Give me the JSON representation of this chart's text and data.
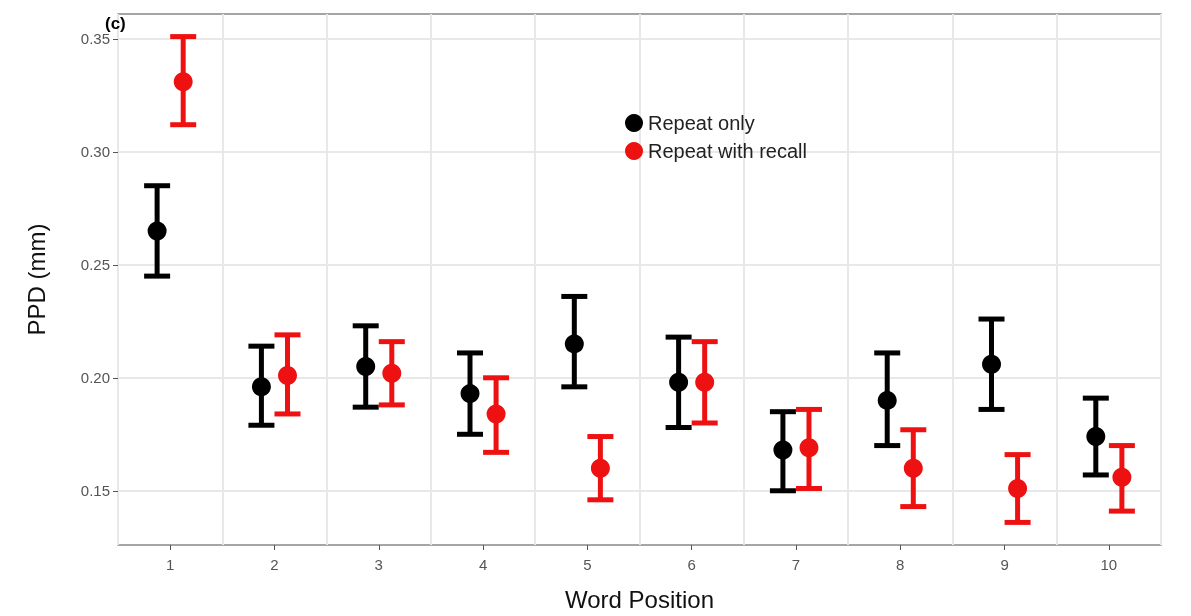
{
  "chart_data": {
    "type": "scatter",
    "xlabel": "Word Position",
    "ylabel": "PPD (mm)",
    "annotations": [
      "(c)"
    ],
    "categories": [
      "1",
      "2",
      "3",
      "4",
      "5",
      "6",
      "7",
      "8",
      "9",
      "10"
    ],
    "series": [
      {
        "name": "Repeat only",
        "color": "#000000",
        "values": [
          0.265,
          0.196,
          0.205,
          0.193,
          0.215,
          0.198,
          0.168,
          0.19,
          0.206,
          0.174
        ],
        "errors": [
          [
            0.245,
            0.285
          ],
          [
            0.179,
            0.214
          ],
          [
            0.187,
            0.223
          ],
          [
            0.175,
            0.211
          ],
          [
            0.196,
            0.236
          ],
          [
            0.178,
            0.218
          ],
          [
            0.15,
            0.185
          ],
          [
            0.17,
            0.211
          ],
          [
            0.186,
            0.226
          ],
          [
            0.157,
            0.191
          ]
        ]
      },
      {
        "name": "Repeat with recall",
        "color": "#ee1111",
        "values": [
          0.331,
          0.201,
          0.202,
          0.184,
          0.16,
          0.198,
          0.169,
          0.16,
          0.151,
          0.156
        ],
        "errors": [
          [
            0.312,
            0.351
          ],
          [
            0.184,
            0.219
          ],
          [
            0.188,
            0.216
          ],
          [
            0.167,
            0.2
          ],
          [
            0.146,
            0.174
          ],
          [
            0.18,
            0.216
          ],
          [
            0.151,
            0.186
          ],
          [
            0.143,
            0.177
          ],
          [
            0.136,
            0.166
          ],
          [
            0.141,
            0.17
          ]
        ]
      }
    ],
    "ylim": [
      0.126,
      0.361
    ],
    "yticks": [
      0.15,
      {
        "value": 0.2,
        "label": "0.20"
      },
      0.25,
      {
        "value": 0.3,
        "label": "0.30"
      },
      0.35
    ],
    "grid": true,
    "legend": "top",
    "marker": "circle"
  }
}
